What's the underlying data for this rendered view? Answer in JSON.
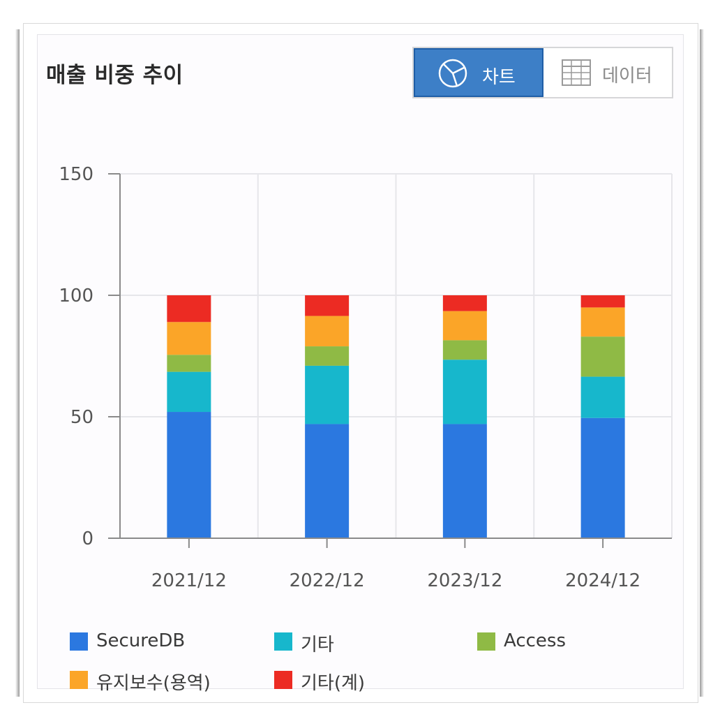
{
  "panel": {
    "title": "매출 비중 추이",
    "toggle": {
      "chart_label": "차트",
      "data_label": "데이터",
      "chart_icon": "pie-chart-icon",
      "data_icon": "table-grid-icon"
    }
  },
  "colors": {
    "accent": "#3d7fc7",
    "series": [
      "#2b78e0",
      "#17b7cc",
      "#8fba45",
      "#fba528",
      "#ec2b23"
    ]
  },
  "chart_data": {
    "type": "bar",
    "stacked": true,
    "title": "",
    "xlabel": "",
    "ylabel": "",
    "categories": [
      "2021/12",
      "2022/12",
      "2023/12",
      "2024/12"
    ],
    "ylim": [
      0,
      150
    ],
    "yticks": [
      0,
      50,
      100,
      150
    ],
    "grid": true,
    "legend_position": "bottom",
    "series": [
      {
        "name": "SecureDB",
        "values": [
          52,
          47,
          47,
          49.5
        ]
      },
      {
        "name": "기타",
        "values": [
          16.5,
          24,
          26.5,
          17
        ]
      },
      {
        "name": "Access",
        "values": [
          7,
          8,
          8,
          16.5
        ]
      },
      {
        "name": "유지보수(용역)",
        "values": [
          13.5,
          12.5,
          12,
          12
        ]
      },
      {
        "name": "기타(계)",
        "values": [
          11,
          8.5,
          6.5,
          5
        ]
      }
    ]
  }
}
